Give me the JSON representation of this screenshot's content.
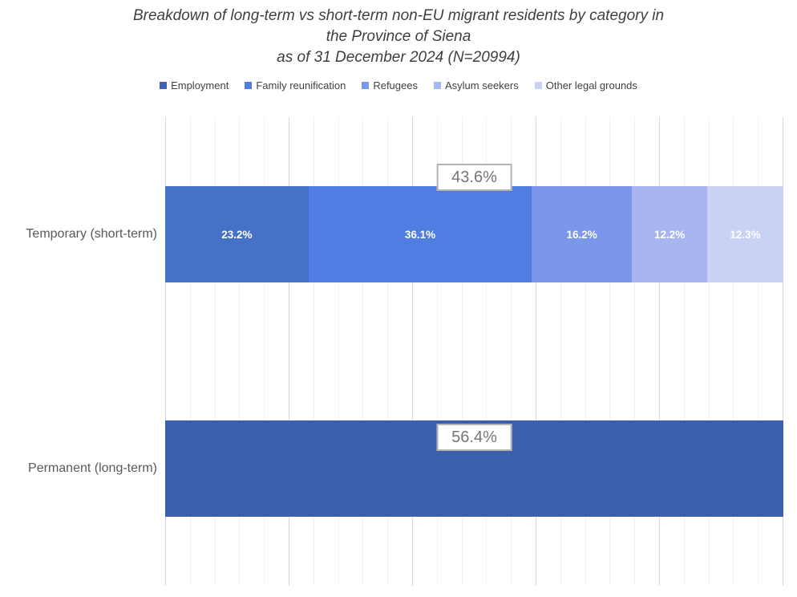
{
  "chart_data": {
    "type": "bar",
    "subtype": "stacked-horizontal-100pct",
    "orientation": "horizontal",
    "title_lines": [
      "Breakdown of long-term vs short-term non-EU migrant residents by category in",
      "the Province of Siena",
      "as of 31 December 2024 (N=20994)"
    ],
    "n_total": 20994,
    "legend": {
      "position": "top",
      "items": [
        {
          "label": "Employment",
          "color": "#3e63b0"
        },
        {
          "label": "Family reunification",
          "color": "#4f7de2"
        },
        {
          "label": "Refugees",
          "color": "#7a97ec"
        },
        {
          "label": "Asylum seekers",
          "color": "#a7b6f1"
        },
        {
          "label": "Other legal grounds",
          "color": "#c9d1f5"
        }
      ]
    },
    "categories": [
      "Temporary (short-term)",
      "Permanent (long-term)"
    ],
    "rows": [
      {
        "category": "Temporary (short-term)",
        "total_share_label": "43.6%",
        "segments": [
          {
            "series": "Employment",
            "pct": 23.2,
            "label": "23.2%",
            "color": "#4571c7"
          },
          {
            "series": "Family reunification",
            "pct": 36.1,
            "label": "36.1%",
            "color": "#4f7de2"
          },
          {
            "series": "Refugees",
            "pct": 16.2,
            "label": "16.2%",
            "color": "#7a97ec"
          },
          {
            "series": "Asylum seekers",
            "pct": 12.2,
            "label": "12.2%",
            "color": "#a7b6f1"
          },
          {
            "series": "Other legal grounds",
            "pct": 12.3,
            "label": "12.3%",
            "color": "#c9d1f5"
          }
        ]
      },
      {
        "category": "Permanent (long-term)",
        "total_share_label": "56.4%",
        "segments": [
          {
            "series": "",
            "pct": 100,
            "label": "",
            "color": "#3b5fac"
          }
        ]
      }
    ],
    "x_axis": {
      "min": 0,
      "max": 100,
      "minor_gridline_step_pct": 4,
      "major_gridline_step_pct": 20,
      "tick_labels_visible": false
    },
    "colors": {
      "background": "#ffffff",
      "minor_gridline": "#f2f2f2",
      "major_gridline": "#d8d8d8",
      "title_text": "#3f3f3f",
      "legend_text": "#424242",
      "axis_label_text": "#595959",
      "segment_label_text": "#ffffff",
      "total_label_text": "#757575",
      "total_label_border": "#b3b3b3"
    }
  }
}
